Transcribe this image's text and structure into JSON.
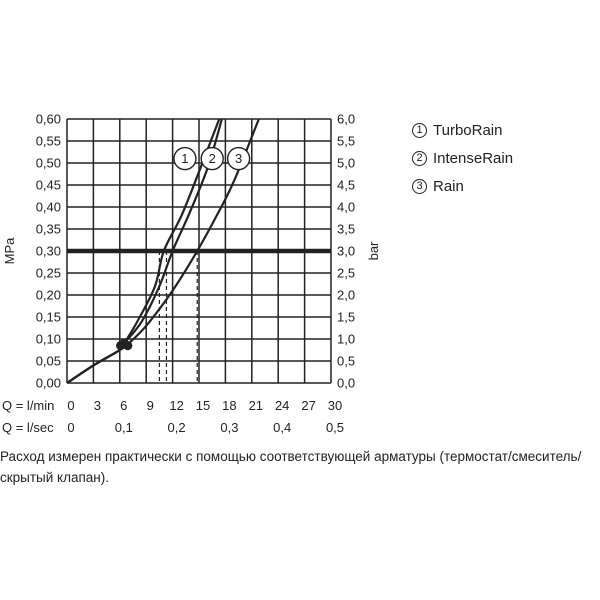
{
  "chart_data": {
    "type": "line",
    "y_left": {
      "label": "MPa",
      "ticks": [
        "0,00",
        "0,05",
        "0,10",
        "0,15",
        "0,20",
        "0,25",
        "0,30",
        "0,35",
        "0,40",
        "0,45",
        "0,50",
        "0,55",
        "0,60"
      ],
      "range": [
        0,
        0.6
      ]
    },
    "y_right": {
      "label": "bar",
      "ticks": [
        "0,0",
        "0,5",
        "1,0",
        "1,5",
        "2,0",
        "2,5",
        "3,0",
        "3,5",
        "4,0",
        "4,5",
        "5,0",
        "5,5",
        "6,0"
      ],
      "range": [
        0,
        6
      ]
    },
    "x_lmin": {
      "label": "Q = l/min",
      "ticks": [
        "0",
        "3",
        "6",
        "9",
        "12",
        "15",
        "18",
        "21",
        "24",
        "27",
        "30"
      ],
      "range": [
        0,
        30
      ]
    },
    "x_lsec": {
      "label": "Q = l/sec",
      "ticks": [
        "0",
        "0,1",
        "0,2",
        "0,3",
        "0,4",
        "0,5"
      ]
    },
    "grid": true,
    "reference_line": {
      "y": 0.3
    },
    "series": [
      {
        "name": "TurboRain",
        "badge": "1",
        "x": [
          0,
          3,
          6,
          6.5,
          8,
          10,
          11,
          13,
          15,
          17.3
        ],
        "y": [
          0,
          0.04,
          0.075,
          0.09,
          0.14,
          0.22,
          0.3,
          0.38,
          0.48,
          0.6
        ]
      },
      {
        "name": "IntenseRain",
        "badge": "2",
        "x": [
          0,
          3,
          6,
          6.5,
          8.5,
          10.5,
          12,
          14,
          16,
          17.6
        ],
        "y": [
          0,
          0.04,
          0.075,
          0.09,
          0.14,
          0.22,
          0.3,
          0.39,
          0.49,
          0.6
        ]
      },
      {
        "name": "Rain",
        "badge": "3",
        "x": [
          0,
          3,
          6,
          7,
          9,
          12,
          14.8,
          17,
          19,
          21.8
        ],
        "y": [
          0,
          0.04,
          0.075,
          0.09,
          0.13,
          0.21,
          0.3,
          0.38,
          0.46,
          0.6
        ]
      }
    ],
    "markers": [
      {
        "x": 10.5,
        "y": 0.3
      },
      {
        "x": 11.3,
        "y": 0.3
      },
      {
        "x": 14.8,
        "y": 0.3
      }
    ],
    "legend_position": "right"
  },
  "note": "Расход измерен практически с помощью соответствующей арматуры (термостат/смеситель/скрытый клапан)."
}
